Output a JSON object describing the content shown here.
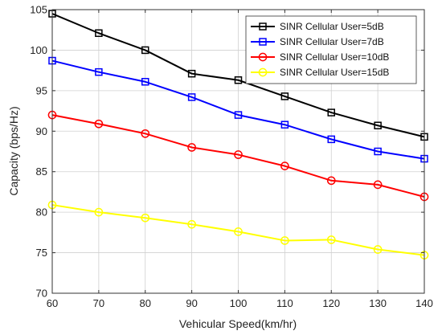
{
  "chart_data": {
    "type": "line",
    "title": "",
    "xlabel": "Vehicular Speed(km/hr)",
    "ylabel": "Capacity (bps/Hz)",
    "x": [
      60,
      70,
      80,
      90,
      100,
      110,
      120,
      130,
      140
    ],
    "xlim": [
      60,
      140
    ],
    "ylim": [
      70,
      105
    ],
    "xticks": [
      60,
      70,
      80,
      90,
      100,
      110,
      120,
      130,
      140
    ],
    "yticks": [
      70,
      75,
      80,
      85,
      90,
      95,
      100,
      105
    ],
    "grid": true,
    "legend_position": "top-right",
    "series": [
      {
        "name": "SINR Cellular User=5dB",
        "color": "#000000",
        "marker": "square",
        "values": [
          104.5,
          102.1,
          100.0,
          97.1,
          96.3,
          94.3,
          92.3,
          90.7,
          89.3
        ]
      },
      {
        "name": "SINR Cellular User=7dB",
        "color": "#0000ff",
        "marker": "square",
        "values": [
          98.7,
          97.3,
          96.1,
          94.2,
          92.0,
          90.8,
          89.0,
          87.5,
          86.6
        ]
      },
      {
        "name": "SINR Cellular User=10dB",
        "color": "#ff0000",
        "marker": "circle",
        "values": [
          92.0,
          90.9,
          89.7,
          88.0,
          87.1,
          85.7,
          83.9,
          83.4,
          81.9
        ]
      },
      {
        "name": "SINR Cellular User=15dB",
        "color": "#ffff00",
        "marker": "circle",
        "values": [
          80.9,
          80.0,
          79.3,
          78.5,
          77.6,
          76.5,
          76.6,
          75.4,
          74.7
        ]
      }
    ]
  }
}
